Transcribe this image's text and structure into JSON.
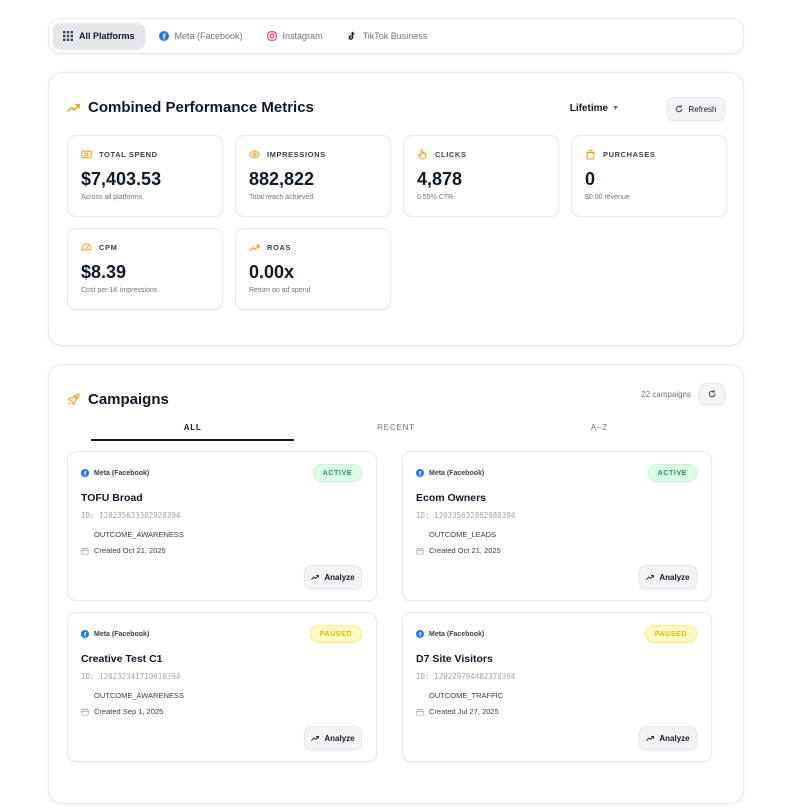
{
  "platforms": {
    "tabs": [
      {
        "label": "All Platforms",
        "icon": "grid-icon",
        "active": true
      },
      {
        "label": "Meta (Facebook)",
        "icon": "facebook-icon"
      },
      {
        "label": "Instagram",
        "icon": "instagram-icon"
      },
      {
        "label": "TikTok Business",
        "icon": "tiktok-icon"
      }
    ]
  },
  "performance": {
    "title": "Combined Performance Metrics",
    "period": "Lifetime",
    "refresh_label": "Refresh",
    "metrics": [
      {
        "label": "TOTAL SPEND",
        "value": "$7,403.53",
        "sub": "Across all platforms",
        "icon": "money-icon"
      },
      {
        "label": "IMPRESSIONS",
        "value": "882,822",
        "sub": "Total reach achieved",
        "icon": "eye-icon"
      },
      {
        "label": "CLICKS",
        "value": "4,878",
        "sub": "0.55% CTR",
        "icon": "hand-pointer-icon"
      },
      {
        "label": "PURCHASES",
        "value": "0",
        "sub": "$0.00 revenue",
        "icon": "shopping-bag-icon"
      },
      {
        "label": "CPM",
        "value": "$8.39",
        "sub": "Cost per 1K impressions",
        "icon": "gauge-icon"
      },
      {
        "label": "ROAS",
        "value": "0.00x",
        "sub": "Return on ad spend",
        "icon": "trend-up-icon"
      }
    ]
  },
  "campaigns": {
    "title": "Campaigns",
    "count_text": "22 campaigns",
    "tabs": [
      {
        "label": "ALL",
        "active": true
      },
      {
        "label": "RECENT"
      },
      {
        "label": "A–Z"
      }
    ],
    "analyze_label": "Analyze",
    "items": [
      {
        "platform": "Meta (Facebook)",
        "status": "ACTIVE",
        "name": "TOFU Broad",
        "id": "ID: 120235633302920394",
        "objective": "OUTCOME_AWARENESS",
        "created": "Created Oct 21, 2025"
      },
      {
        "platform": "Meta (Facebook)",
        "status": "ACTIVE",
        "name": "Ecom Owners",
        "id": "ID: 120235632862988394",
        "objective": "OUTCOME_LEADS",
        "created": "Created Oct 21, 2025"
      },
      {
        "platform": "Meta (Facebook)",
        "status": "PAUSED",
        "name": "Creative Test C1",
        "id": "ID: 120232341710910394",
        "objective": "OUTCOME_AWARENESS",
        "created": "Created Sep 1, 2025"
      },
      {
        "platform": "Meta (Facebook)",
        "status": "PAUSED",
        "name": "D7 Site Visitors",
        "id": "ID: 120229794482370394",
        "objective": "OUTCOME_TRAFFIC",
        "created": "Created Jul 27, 2025"
      }
    ]
  },
  "colors": {
    "accent_orange": "#f59e0b",
    "facebook_blue": "#1877f2",
    "active_green": "#16a34a",
    "paused_yellow": "#eab308"
  }
}
